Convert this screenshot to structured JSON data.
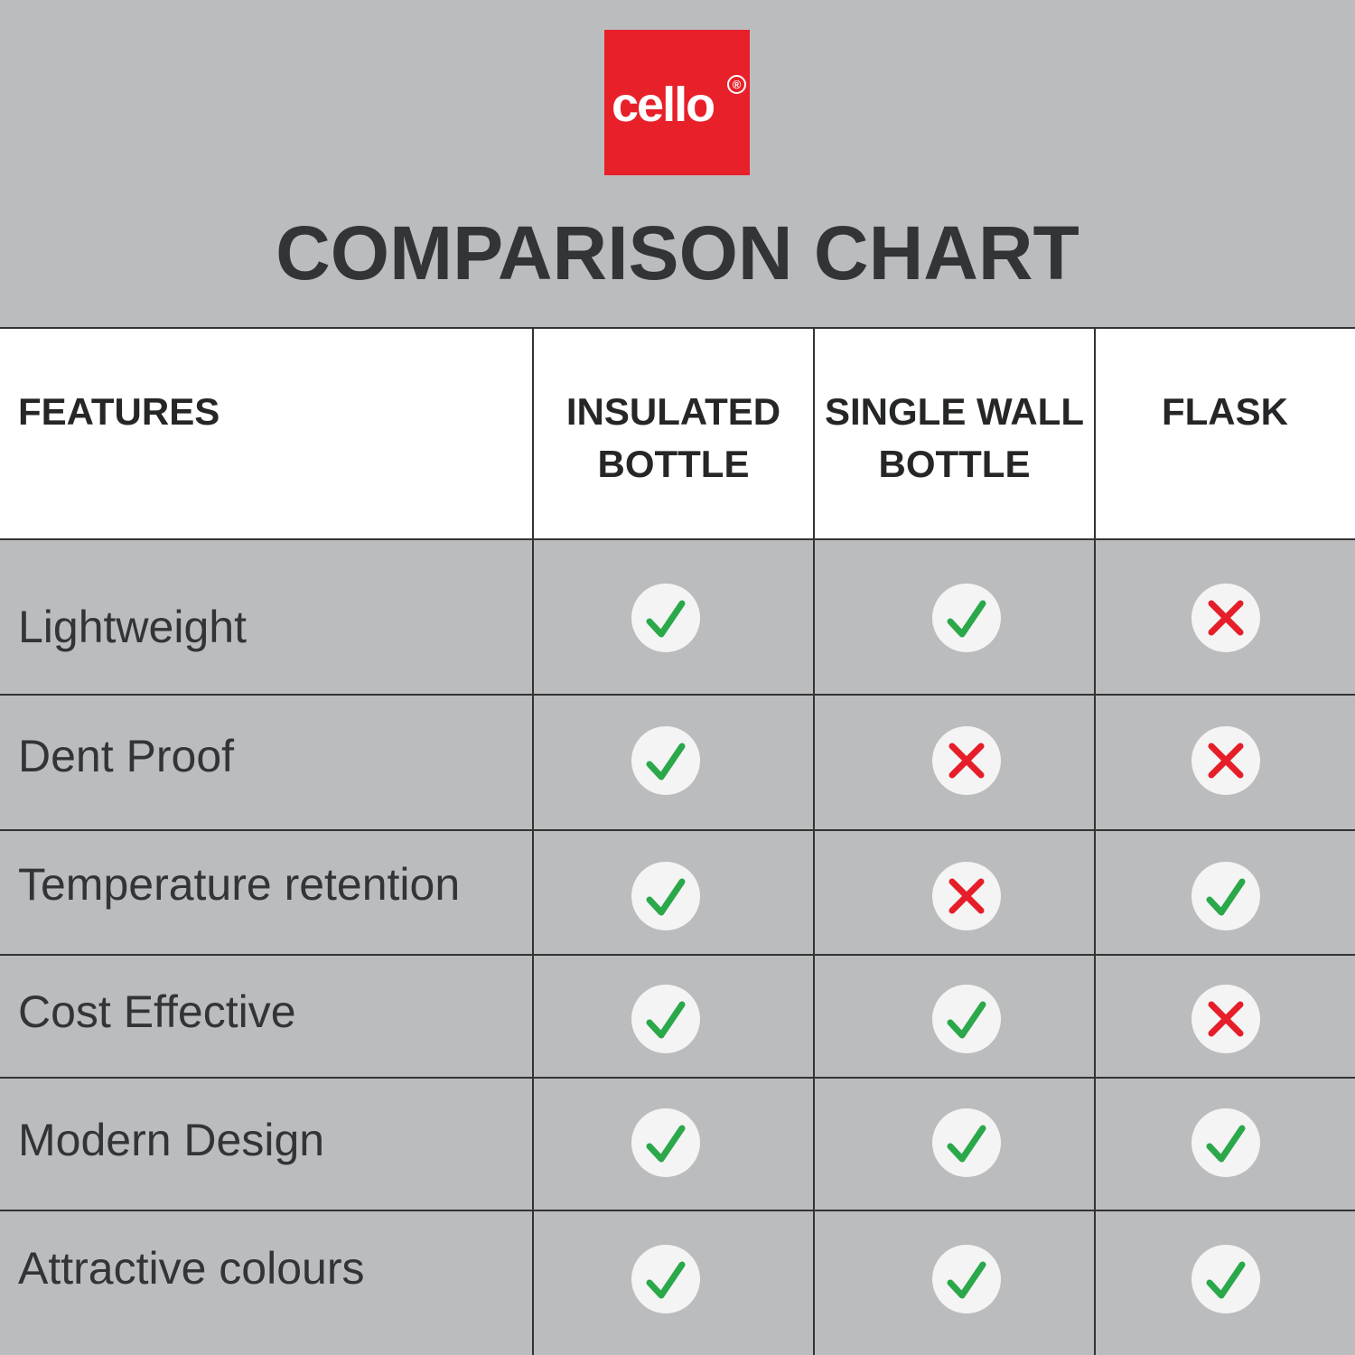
{
  "brand": {
    "logo_text": "cello",
    "registered_mark": "®",
    "color": "#e8202a"
  },
  "title": "COMPARISON CHART",
  "colors": {
    "check": "#2aa84a",
    "cross": "#e61e2a",
    "background": "#bbbcbe"
  },
  "chart_data": {
    "type": "table",
    "title": "COMPARISON CHART",
    "columns": [
      "FEATURES",
      "INSULATED BOTTLE",
      "SINGLE WALL BOTTLE",
      "FLASK"
    ],
    "rows": [
      {
        "feature": "Lightweight",
        "values": [
          "check",
          "check",
          "cross"
        ]
      },
      {
        "feature": "Dent Proof",
        "values": [
          "check",
          "cross",
          "cross"
        ]
      },
      {
        "feature": "Temperature retention",
        "values": [
          "check",
          "cross",
          "check"
        ]
      },
      {
        "feature": "Cost Effective",
        "values": [
          "check",
          "check",
          "cross"
        ]
      },
      {
        "feature": "Modern Design",
        "values": [
          "check",
          "check",
          "check"
        ]
      },
      {
        "feature": "Attractive colours",
        "values": [
          "check",
          "check",
          "check"
        ]
      }
    ]
  }
}
